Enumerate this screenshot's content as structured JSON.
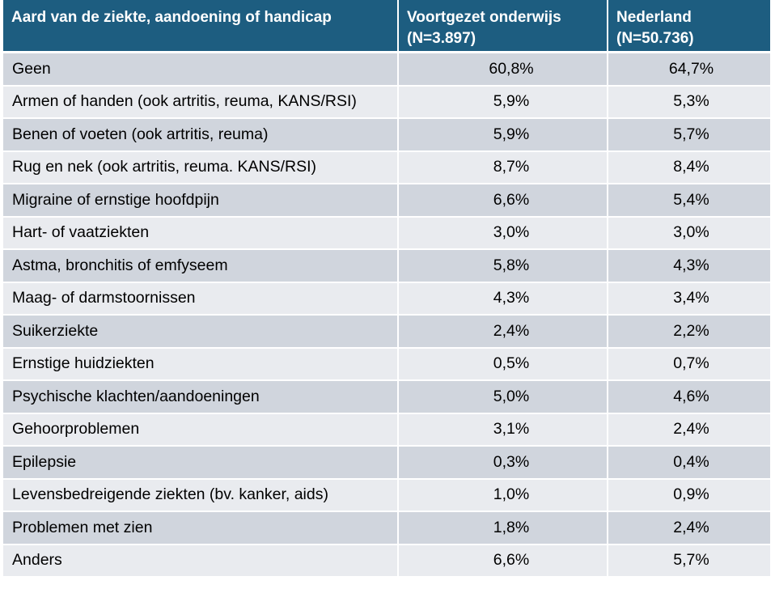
{
  "table": {
    "headers": [
      {
        "line1": "Aard van de ziekte, aandoening  of handicap",
        "line2": ""
      },
      {
        "line1": "Voortgezet onderwijs",
        "line2": "(N=3.897)"
      },
      {
        "line1": "Nederland",
        "line2": "(N=50.736)"
      }
    ],
    "rows": [
      {
        "label": "Geen",
        "vo": "60,8%",
        "nl": "64,7%"
      },
      {
        "label": "Armen of handen (ook artritis, reuma, KANS/RSI)",
        "vo": "5,9%",
        "nl": "5,3%"
      },
      {
        "label": "Benen of voeten (ook artritis, reuma)",
        "vo": "5,9%",
        "nl": "5,7%"
      },
      {
        "label": "Rug en nek (ook artritis, reuma. KANS/RSI)",
        "vo": "8,7%",
        "nl": "8,4%"
      },
      {
        "label": "Migraine of ernstige hoofdpijn",
        "vo": "6,6%",
        "nl": "5,4%"
      },
      {
        "label": "Hart- of vaatziekten",
        "vo": "3,0%",
        "nl": "3,0%"
      },
      {
        "label": "Astma, bronchitis of emfyseem",
        "vo": "5,8%",
        "nl": "4,3%"
      },
      {
        "label": "Maag- of darmstoornissen",
        "vo": "4,3%",
        "nl": "3,4%"
      },
      {
        "label": "Suikerziekte",
        "vo": "2,4%",
        "nl": "2,2%"
      },
      {
        "label": "Ernstige huidziekten",
        "vo": "0,5%",
        "nl": "0,7%"
      },
      {
        "label": "Psychische klachten/aandoeningen",
        "vo": "5,0%",
        "nl": "4,6%"
      },
      {
        "label": "Gehoorproblemen",
        "vo": "3,1%",
        "nl": "2,4%"
      },
      {
        "label": "Epilepsie",
        "vo": "0,3%",
        "nl": "0,4%"
      },
      {
        "label": "Levensbedreigende ziekten (bv. kanker, aids)",
        "vo": "1,0%",
        "nl": "0,9%"
      },
      {
        "label": "Problemen met zien",
        "vo": "1,8%",
        "nl": "2,4%"
      },
      {
        "label": "Anders",
        "vo": "6,6%",
        "nl": "5,7%"
      }
    ]
  },
  "colors": {
    "header_bg": "#1d5d80",
    "row_dark": "#d0d5dd",
    "row_light": "#e9ebef"
  }
}
